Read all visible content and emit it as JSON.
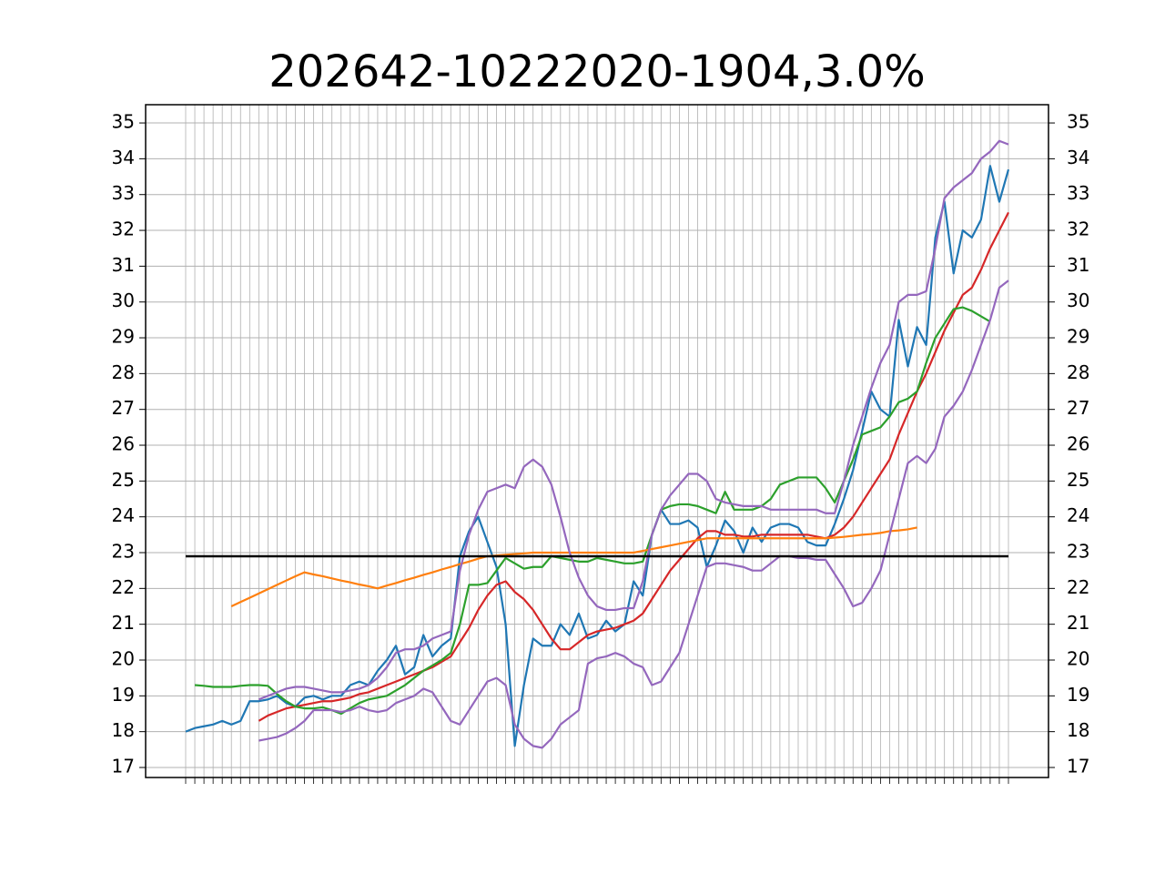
{
  "chart_data": {
    "type": "line",
    "title": "202642-10222020-1904,3.0%",
    "categories": [
      null,
      null,
      null,
      null,
      null,
      null,
      null,
      null,
      null,
      null,
      null,
      null,
      null,
      null,
      null,
      null,
      null,
      null,
      null,
      null,
      null,
      null,
      null,
      null,
      null,
      null,
      null,
      null,
      null,
      null,
      null,
      null,
      null,
      null,
      null,
      null,
      null,
      null,
      null,
      null,
      null,
      null,
      null,
      null,
      null,
      null,
      null,
      null,
      null,
      null,
      null,
      null,
      null,
      null,
      null,
      null,
      null,
      null,
      null,
      null,
      null,
      null,
      null,
      null,
      null,
      null,
      null,
      null,
      null,
      null,
      null,
      null,
      null,
      null,
      null,
      null,
      null,
      null,
      null,
      null,
      null,
      null,
      null,
      null,
      null,
      null,
      null,
      null,
      null,
      null,
      null
    ],
    "ylim": [
      16.72,
      35.51
    ],
    "yticks": [
      17,
      18,
      19,
      20,
      21,
      22,
      23,
      24,
      25,
      26,
      27,
      28,
      29,
      30,
      31,
      32,
      33,
      34,
      35
    ],
    "grid": true,
    "hline": {
      "value": 22.9,
      "color": "#000000"
    },
    "series": [
      {
        "color": "#1f77b4",
        "values": [
          18.0,
          18.1,
          18.15,
          18.2,
          18.3,
          18.2,
          18.3,
          18.85,
          18.85,
          18.9,
          19.0,
          18.8,
          18.7,
          18.95,
          19.0,
          18.9,
          19.0,
          19.0,
          19.3,
          19.4,
          19.3,
          19.7,
          20.0,
          20.4,
          19.6,
          19.8,
          20.7,
          20.1,
          20.4,
          20.6,
          22.9,
          23.6,
          24.0,
          23.3,
          22.6,
          21.0,
          17.6,
          19.3,
          20.6,
          20.4,
          20.4,
          21.0,
          20.7,
          21.3,
          20.6,
          20.7,
          21.1,
          20.8,
          21.0,
          22.2,
          21.8,
          23.5,
          24.2,
          23.8,
          23.8,
          23.9,
          23.7,
          22.6,
          23.2,
          23.9,
          23.6,
          23.0,
          23.7,
          23.3,
          23.7,
          23.8,
          23.8,
          23.7,
          23.3,
          23.2,
          23.2,
          23.8,
          24.5,
          25.3,
          26.4,
          27.5,
          27.0,
          26.8,
          29.5,
          28.2,
          29.3,
          28.8,
          31.8,
          32.8,
          30.8,
          32.0,
          31.8,
          32.3,
          33.8,
          32.8,
          33.7
        ]
      },
      {
        "color": "#d62728",
        "values": [
          null,
          null,
          null,
          null,
          null,
          null,
          null,
          null,
          18.3,
          18.45,
          18.55,
          18.65,
          18.7,
          18.75,
          18.8,
          18.85,
          18.85,
          18.9,
          18.95,
          19.05,
          19.1,
          19.2,
          19.3,
          19.4,
          19.5,
          19.6,
          19.7,
          19.8,
          19.95,
          20.1,
          20.5,
          20.9,
          21.4,
          21.8,
          22.1,
          22.2,
          21.9,
          21.7,
          21.4,
          21.0,
          20.6,
          20.3,
          20.3,
          20.5,
          20.7,
          20.8,
          20.85,
          20.9,
          21.0,
          21.1,
          21.3,
          21.7,
          22.1,
          22.5,
          22.8,
          23.1,
          23.4,
          23.6,
          23.6,
          23.5,
          23.5,
          23.45,
          23.45,
          23.5,
          23.5,
          23.5,
          23.5,
          23.5,
          23.5,
          23.45,
          23.4,
          23.5,
          23.7,
          24.0,
          24.4,
          24.8,
          25.2,
          25.6,
          26.3,
          26.9,
          27.5,
          28.0,
          28.6,
          29.2,
          29.7,
          30.2,
          30.4,
          30.9,
          31.5,
          32.0,
          32.5
        ]
      },
      {
        "color": "#2ca02c",
        "values": [
          null,
          19.3,
          19.28,
          19.25,
          19.25,
          19.25,
          19.28,
          19.3,
          19.3,
          19.28,
          19.05,
          18.85,
          18.7,
          18.65,
          18.65,
          18.68,
          18.6,
          18.5,
          18.65,
          18.8,
          18.9,
          18.95,
          19.0,
          19.15,
          19.3,
          19.5,
          19.7,
          19.85,
          20.0,
          20.2,
          21.0,
          22.1,
          22.1,
          22.15,
          22.5,
          22.85,
          22.7,
          22.55,
          22.6,
          22.6,
          22.9,
          22.85,
          22.8,
          22.75,
          22.75,
          22.85,
          22.8,
          22.75,
          22.7,
          22.7,
          22.75,
          23.5,
          24.2,
          24.3,
          24.35,
          24.35,
          24.3,
          24.2,
          24.1,
          24.7,
          24.2,
          24.2,
          24.2,
          24.3,
          24.5,
          24.9,
          25.0,
          25.1,
          25.1,
          25.1,
          24.8,
          24.4,
          25.0,
          25.6,
          26.3,
          26.4,
          26.5,
          26.8,
          27.2,
          27.3,
          27.5,
          28.3,
          29.0,
          29.4,
          29.8,
          29.85,
          29.75,
          29.6,
          29.45,
          null,
          null
        ]
      },
      {
        "color": "#ff7f0e",
        "values": [
          null,
          null,
          null,
          null,
          null,
          21.5,
          21.62,
          21.74,
          21.86,
          21.98,
          22.1,
          22.22,
          22.34,
          22.45,
          22.39,
          22.34,
          22.28,
          22.22,
          22.17,
          22.11,
          22.06,
          22.0,
          22.08,
          22.15,
          22.23,
          22.3,
          22.38,
          22.45,
          22.53,
          22.6,
          22.68,
          22.75,
          22.83,
          22.9,
          22.92,
          22.94,
          22.96,
          22.98,
          23.0,
          23.0,
          23.0,
          23.0,
          23.0,
          23.0,
          23.0,
          23.0,
          23.0,
          23.0,
          23.0,
          23.0,
          23.05,
          23.1,
          23.15,
          23.2,
          23.25,
          23.3,
          23.35,
          23.4,
          23.4,
          23.4,
          23.4,
          23.4,
          23.4,
          23.4,
          23.4,
          23.4,
          23.4,
          23.4,
          23.4,
          23.4,
          23.4,
          23.42,
          23.44,
          23.47,
          23.5,
          23.52,
          23.55,
          23.6,
          23.62,
          23.65,
          23.7,
          null,
          null,
          null,
          null,
          null,
          null,
          null,
          null,
          null,
          null
        ]
      },
      {
        "color": "#9467bd",
        "values": [
          null,
          null,
          null,
          null,
          null,
          null,
          null,
          null,
          18.9,
          19.0,
          19.1,
          19.2,
          19.25,
          19.25,
          19.2,
          19.15,
          19.1,
          19.1,
          19.15,
          19.2,
          19.3,
          19.5,
          19.8,
          20.2,
          20.3,
          20.3,
          20.4,
          20.6,
          20.7,
          20.8,
          22.5,
          23.5,
          24.2,
          24.7,
          24.8,
          24.9,
          24.8,
          25.4,
          25.6,
          25.4,
          24.9,
          24.0,
          23.0,
          22.3,
          21.8,
          21.5,
          21.4,
          21.4,
          21.45,
          21.45,
          22.2,
          23.5,
          24.2,
          24.6,
          24.9,
          25.2,
          25.2,
          25.0,
          24.5,
          24.4,
          24.35,
          24.3,
          24.3,
          24.3,
          24.2,
          24.2,
          24.2,
          24.2,
          24.2,
          24.2,
          24.1,
          24.1,
          25.0,
          26.0,
          26.8,
          27.6,
          28.3,
          28.8,
          30.0,
          30.2,
          30.2,
          30.3,
          31.5,
          32.9,
          33.2,
          33.4,
          33.6,
          34.0,
          34.2,
          34.5,
          34.4
        ]
      },
      {
        "color": "#9467bd",
        "values": [
          null,
          null,
          null,
          null,
          null,
          null,
          null,
          null,
          17.75,
          17.8,
          17.85,
          17.95,
          18.1,
          18.3,
          18.6,
          18.6,
          18.6,
          18.55,
          18.6,
          18.7,
          18.6,
          18.55,
          18.6,
          18.8,
          18.9,
          19.0,
          19.2,
          19.1,
          18.7,
          18.3,
          18.2,
          18.6,
          19.0,
          19.4,
          19.5,
          19.3,
          18.2,
          17.8,
          17.6,
          17.55,
          17.8,
          18.2,
          18.4,
          18.6,
          19.9,
          20.05,
          20.1,
          20.2,
          20.1,
          19.9,
          19.8,
          19.3,
          19.4,
          19.8,
          20.2,
          21.0,
          21.8,
          22.6,
          22.7,
          22.7,
          22.65,
          22.6,
          22.5,
          22.5,
          22.7,
          22.9,
          22.9,
          22.85,
          22.85,
          22.8,
          22.8,
          22.4,
          22.0,
          21.5,
          21.6,
          22.0,
          22.5,
          23.5,
          24.5,
          25.5,
          25.7,
          25.5,
          25.9,
          26.8,
          27.1,
          27.5,
          28.1,
          28.8,
          29.5,
          30.4,
          30.6
        ]
      }
    ]
  }
}
